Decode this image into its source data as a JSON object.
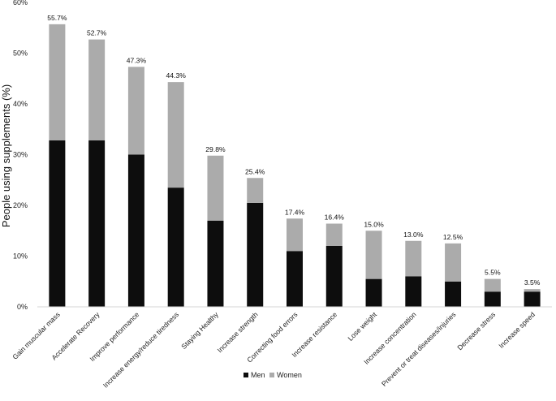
{
  "chart_data": {
    "type": "bar",
    "stacked": true,
    "ylabel": "People using supplements (%)",
    "xlabel": "",
    "ylim": [
      0,
      60
    ],
    "yticks": [
      "0%",
      "10%",
      "20%",
      "30%",
      "40%",
      "50%",
      "60%"
    ],
    "grid": false,
    "legend_position": "bottom",
    "categories": [
      "Gain muscular mass",
      "Accelerate Recovery",
      "Improve performance",
      "Increase energy/reduce tiredness",
      "Staying Healthy",
      "Increase strength",
      "Correcting food errors",
      "Increase resistance",
      "Lose weight",
      "Increase concentration",
      "Prevent or treat diseases/injuries",
      "Decrease stress",
      "Increase speed"
    ],
    "series": [
      {
        "name": "Men",
        "color": "#0d0d0d",
        "values": [
          32.8,
          32.8,
          30.0,
          23.5,
          17.0,
          20.5,
          11.0,
          12.0,
          5.5,
          6.0,
          5.0,
          3.0,
          3.0
        ]
      },
      {
        "name": "Women",
        "color": "#ababab",
        "values": [
          22.9,
          19.9,
          17.3,
          20.8,
          12.8,
          4.9,
          6.4,
          4.4,
          9.5,
          7.0,
          7.5,
          2.5,
          0.5
        ]
      }
    ],
    "totals": [
      "55.7%",
      "52.7%",
      "47.3%",
      "44.3%",
      "29.8%",
      "25.4%",
      "17.4%",
      "16.4%",
      "15.0%",
      "13.0%",
      "12.5%",
      "5.5%",
      "3.5%"
    ]
  }
}
